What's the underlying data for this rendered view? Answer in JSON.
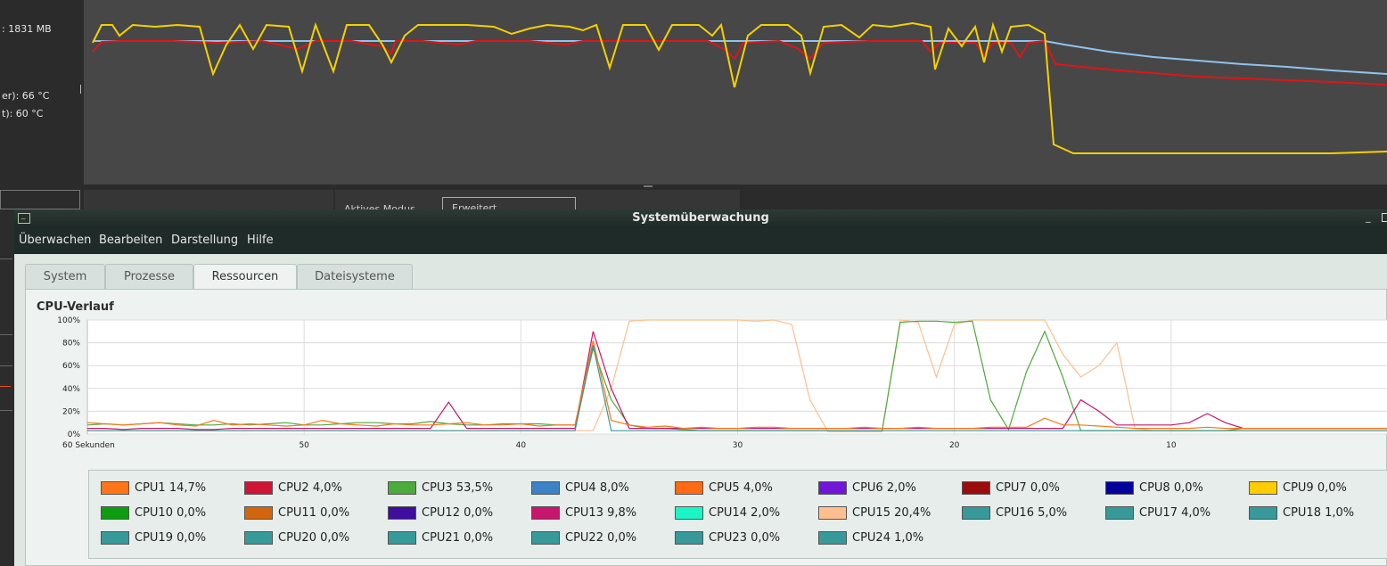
{
  "background_app": {
    "left_text": [
      ": 1831 MB",
      "er): 66 °C",
      "t): 60 °C"
    ],
    "field_label": "Aktives Modus",
    "field_value": "Erweitert"
  },
  "window": {
    "title": "Systemüberwachung"
  },
  "menu": [
    "Überwachen",
    "Bearbeiten",
    "Darstellung",
    "Hilfe"
  ],
  "tabs": [
    {
      "label": "System",
      "active": false
    },
    {
      "label": "Prozesse",
      "active": false
    },
    {
      "label": "Ressourcen",
      "active": true
    },
    {
      "label": "Dateisysteme",
      "active": false
    }
  ],
  "section": {
    "title": "CPU-Verlauf"
  },
  "chart_data": {
    "type": "line",
    "title": "CPU-Verlauf",
    "x_label": "60 Sekunden",
    "x_ticks": [
      "60 Sekunden",
      "50",
      "40",
      "30",
      "20",
      "10"
    ],
    "y_ticks": [
      "0%",
      "20%",
      "40%",
      "60%",
      "80%",
      "100%"
    ],
    "ylim": [
      0,
      100
    ],
    "grid": true,
    "series": [
      {
        "name": "CPU15",
        "color": "#fdbf8f",
        "values": [
          3,
          3,
          3,
          3,
          3,
          3,
          3,
          3,
          3,
          3,
          3,
          3,
          3,
          3,
          3,
          3,
          3,
          3,
          3,
          3,
          3,
          3,
          3,
          3,
          3,
          3,
          3,
          3,
          3,
          40,
          99,
          100,
          100,
          100,
          100,
          100,
          100,
          99,
          100,
          96,
          30,
          2,
          2,
          2,
          2,
          100,
          98,
          50,
          96,
          100,
          100,
          100,
          100,
          100,
          70,
          50,
          60,
          80,
          5,
          3,
          3,
          3,
          3,
          3,
          3,
          3,
          3,
          3,
          3,
          3,
          3,
          3,
          3
        ]
      },
      {
        "name": "CPU3",
        "color": "#4daa3c",
        "values": [
          8,
          9,
          8,
          9,
          10,
          9,
          8,
          8,
          9,
          8,
          9,
          10,
          8,
          8,
          9,
          10,
          10,
          9,
          9,
          11,
          9,
          8,
          8,
          9,
          9,
          9,
          8,
          8,
          75,
          30,
          8,
          5,
          5,
          4,
          3,
          3,
          3,
          3,
          3,
          3,
          3,
          3,
          3,
          3,
          3,
          98,
          99,
          99,
          98,
          99,
          30,
          4,
          55,
          90,
          50,
          3,
          3,
          3,
          3,
          3,
          3,
          3,
          3,
          3,
          5,
          5,
          5,
          5,
          5,
          5,
          5,
          5,
          5
        ]
      },
      {
        "name": "CPU13",
        "color": "#c7166c",
        "values": [
          5,
          5,
          4,
          5,
          5,
          5,
          4,
          4,
          5,
          5,
          5,
          5,
          5,
          5,
          5,
          5,
          5,
          5,
          5,
          5,
          28,
          5,
          5,
          5,
          5,
          5,
          5,
          5,
          90,
          40,
          5,
          5,
          5,
          5,
          5,
          5,
          5,
          5,
          5,
          5,
          5,
          5,
          5,
          5,
          5,
          5,
          5,
          5,
          5,
          5,
          5,
          5,
          5,
          5,
          5,
          30,
          20,
          8,
          8,
          8,
          8,
          10,
          18,
          10,
          5,
          5,
          5,
          5,
          5,
          5,
          5,
          5,
          5
        ]
      },
      {
        "name": "CPU1",
        "color": "#ff7518",
        "values": [
          10,
          9,
          8,
          9,
          10,
          8,
          7,
          12,
          8,
          9,
          8,
          7,
          8,
          12,
          9,
          8,
          7,
          9,
          8,
          8,
          9,
          10,
          8,
          8,
          9,
          7,
          8,
          8,
          82,
          12,
          8,
          6,
          7,
          5,
          6,
          5,
          5,
          6,
          6,
          5,
          5,
          5,
          5,
          6,
          5,
          5,
          6,
          5,
          5,
          5,
          6,
          6,
          6,
          14,
          8,
          8,
          7,
          6,
          5,
          5,
          5,
          5,
          6,
          5,
          5,
          5,
          5,
          5,
          5,
          5,
          5,
          5,
          5
        ]
      },
      {
        "name": "CPU16",
        "color": "#36999a",
        "values": [
          3,
          3,
          3,
          3,
          3,
          3,
          3,
          3,
          3,
          3,
          3,
          3,
          3,
          3,
          3,
          3,
          3,
          3,
          3,
          3,
          3,
          3,
          3,
          3,
          3,
          3,
          3,
          3,
          78,
          3,
          3,
          3,
          3,
          3,
          3,
          3,
          3,
          3,
          3,
          3,
          3,
          3,
          3,
          3,
          3,
          3,
          3,
          3,
          3,
          3,
          3,
          3,
          3,
          3,
          3,
          3,
          3,
          3,
          3,
          3,
          3,
          3,
          3,
          3,
          3,
          3,
          3,
          3,
          3,
          3,
          3,
          3,
          3
        ]
      }
    ],
    "legend": [
      {
        "name": "CPU1",
        "value": "14,7%",
        "color": "#ff7518"
      },
      {
        "name": "CPU2",
        "value": "4,0%",
        "color": "#cf1436"
      },
      {
        "name": "CPU3",
        "value": "53,5%",
        "color": "#4daa3c"
      },
      {
        "name": "CPU4",
        "value": "8,0%",
        "color": "#3b82c6"
      },
      {
        "name": "CPU5",
        "value": "4,0%",
        "color": "#ff6a13"
      },
      {
        "name": "CPU6",
        "value": "2,0%",
        "color": "#7115d6"
      },
      {
        "name": "CPU7",
        "value": "0,0%",
        "color": "#9c0c0c"
      },
      {
        "name": "CPU8",
        "value": "0,0%",
        "color": "#03039b"
      },
      {
        "name": "CPU9",
        "value": "0,0%",
        "color": "#ffcc00"
      },
      {
        "name": "CPU10",
        "value": "0,0%",
        "color": "#0d9b10"
      },
      {
        "name": "CPU11",
        "value": "0,0%",
        "color": "#d4650f"
      },
      {
        "name": "CPU12",
        "value": "0,0%",
        "color": "#3f0da0"
      },
      {
        "name": "CPU13",
        "value": "9,8%",
        "color": "#c7166c"
      },
      {
        "name": "CPU14",
        "value": "2,0%",
        "color": "#1af5c8"
      },
      {
        "name": "CPU15",
        "value": "20,4%",
        "color": "#fdbf8f"
      },
      {
        "name": "CPU16",
        "value": "5,0%",
        "color": "#36999a"
      },
      {
        "name": "CPU17",
        "value": "4,0%",
        "color": "#36999a"
      },
      {
        "name": "CPU18",
        "value": "1,0%",
        "color": "#36999a"
      },
      {
        "name": "CPU19",
        "value": "0,0%",
        "color": "#36999a"
      },
      {
        "name": "CPU20",
        "value": "0,0%",
        "color": "#36999a"
      },
      {
        "name": "CPU21",
        "value": "0,0%",
        "color": "#36999a"
      },
      {
        "name": "CPU22",
        "value": "0,0%",
        "color": "#36999a"
      },
      {
        "name": "CPU23",
        "value": "0,0%",
        "color": "#36999a"
      },
      {
        "name": "CPU24",
        "value": "1,0%",
        "color": "#36999a"
      }
    ]
  }
}
